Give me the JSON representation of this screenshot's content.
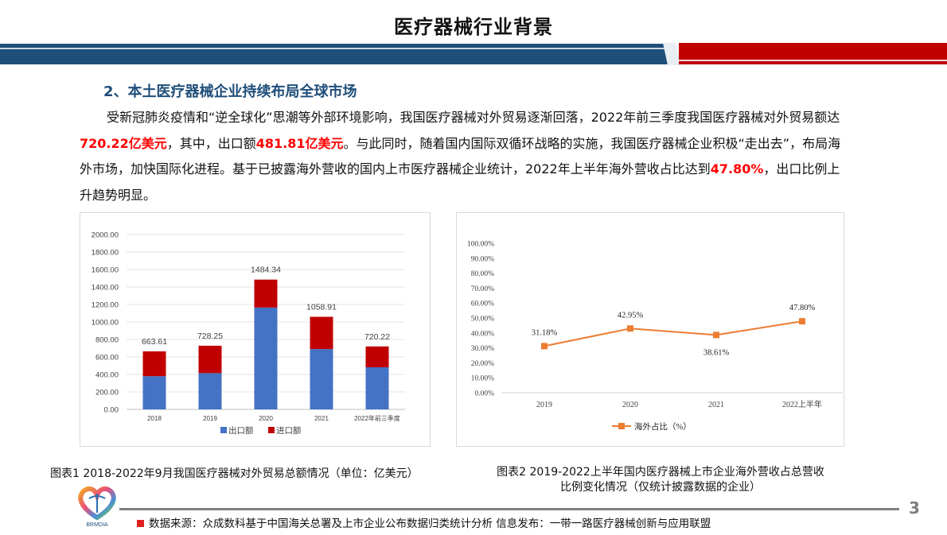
{
  "slide": {
    "title": "医疗器械行业背景",
    "subtitle": "2、本土医疗器械企业持续布局全球市场",
    "paragraph": {
      "p1": "受新冠肺炎疫情和“逆全球化”思潮等外部环境影响，我国医疗器械对外贸易逐渐回落，2022年前三季度我国医疗器械对外贸易额达",
      "h1": "720.22亿美元",
      "p2": "，其中，出口额",
      "h2": "481.81亿美元",
      "p3": "。与此同时，随着国内国际双循环战略的实施，我国医疗器械企业积极“走出去”，布局海外市场，加快国际化进程。基于已披露海外营收的国内上市医疗器械企业统计，2022年上半年海外营收占比达到",
      "h3": "47.80%",
      "p4": "，出口比例上升趋势明显。"
    },
    "caption1": "图表1  2018-2022年9月我国医疗器械对外贸易总额情况（单位：亿美元）",
    "caption2_line1": "图表2  2019-2022上半年国内医疗器械上市企业海外营收占总营收",
    "caption2_line2": "比例变化情况（仅统计披露数据的企业）",
    "footer": "数据来源：众成数科基于中国海关总署及上市企业公布数据归类统计分析    信息发布：一带一路医疗器械创新与应用联盟",
    "page_number": "3",
    "logo_text": "BRMDIA",
    "colors": {
      "header_blue": "#1f4e79",
      "header_red": "#c00000",
      "highlight_red": "#ff0000",
      "export_blue": "#4472c4",
      "import_red": "#c00000",
      "line_orange": "#ed7d31"
    }
  },
  "chart_data": [
    {
      "type": "bar",
      "stacked": true,
      "title": "",
      "categories": [
        "2018",
        "2019",
        "2020",
        "2021",
        "2022年前三季度"
      ],
      "series": [
        {
          "name": "出口额",
          "color": "#4472c4",
          "values": [
            380,
            415,
            1165,
            690,
            481.81
          ]
        },
        {
          "name": "进口额",
          "color": "#c00000",
          "values": [
            283.61,
            313.25,
            319.34,
            368.91,
            238.41
          ]
        }
      ],
      "totals": [
        663.61,
        728.25,
        1484.34,
        1058.91,
        720.22
      ],
      "total_labels": [
        "663.61",
        "728.25",
        "1484.34",
        "1058.91",
        "720.22"
      ],
      "yticks": [
        "0.00",
        "200.00",
        "400.00",
        "600.00",
        "800.00",
        "1000.00",
        "1200.00",
        "1400.00",
        "1600.00",
        "1800.00",
        "2000.00"
      ],
      "ylim": [
        0,
        2000
      ],
      "xlabel": "",
      "ylabel": "",
      "grid": true,
      "legend": {
        "position": "bottom",
        "entries": [
          "出口额",
          "进口额"
        ]
      }
    },
    {
      "type": "line",
      "title": "",
      "categories": [
        "2019",
        "2020",
        "2021",
        "2022上半年"
      ],
      "series": [
        {
          "name": "海外占比（%）",
          "color": "#ed7d31",
          "values": [
            31.18,
            42.95,
            38.61,
            47.8
          ]
        }
      ],
      "data_labels": [
        "31.18%",
        "42.95%",
        "38.61%",
        "47.80%"
      ],
      "yticks": [
        "0.00%",
        "10.00%",
        "20.00%",
        "30.00%",
        "40.00%",
        "50.00%",
        "60.00%",
        "70.00%",
        "80.00%",
        "90.00%",
        "100.00%"
      ],
      "ylim": [
        0,
        100
      ],
      "xlabel": "",
      "ylabel": "",
      "grid": false,
      "legend": {
        "position": "bottom",
        "entries": [
          "海外占比（%）"
        ]
      }
    }
  ]
}
